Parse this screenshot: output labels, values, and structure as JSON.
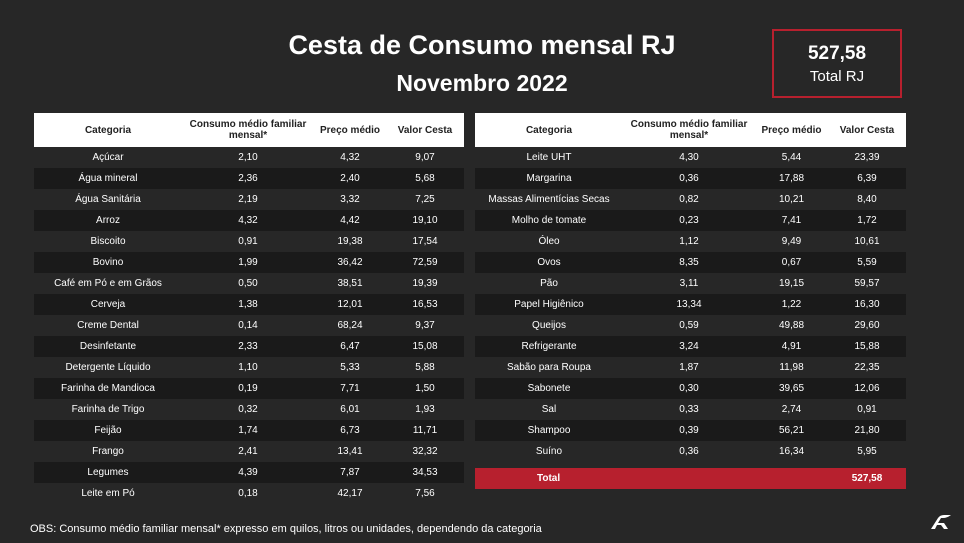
{
  "header": {
    "title": "Cesta de Consumo mensal RJ",
    "subtitle": "Novembro 2022"
  },
  "total_box": {
    "value": "527,58",
    "label": "Total RJ"
  },
  "columns": {
    "categoria": "Categoria",
    "consumo": "Consumo médio familiar mensal*",
    "preco": "Preço médio",
    "valor": "Valor Cesta"
  },
  "left_table": [
    {
      "categoria": "Açúcar",
      "consumo": "2,10",
      "preco": "4,32",
      "valor": "9,07"
    },
    {
      "categoria": "Água mineral",
      "consumo": "2,36",
      "preco": "2,40",
      "valor": "5,68"
    },
    {
      "categoria": "Água Sanitária",
      "consumo": "2,19",
      "preco": "3,32",
      "valor": "7,25"
    },
    {
      "categoria": "Arroz",
      "consumo": "4,32",
      "preco": "4,42",
      "valor": "19,10"
    },
    {
      "categoria": "Biscoito",
      "consumo": "0,91",
      "preco": "19,38",
      "valor": "17,54"
    },
    {
      "categoria": "Bovino",
      "consumo": "1,99",
      "preco": "36,42",
      "valor": "72,59"
    },
    {
      "categoria": "Café em Pó e em Grãos",
      "consumo": "0,50",
      "preco": "38,51",
      "valor": "19,39"
    },
    {
      "categoria": "Cerveja",
      "consumo": "1,38",
      "preco": "12,01",
      "valor": "16,53"
    },
    {
      "categoria": "Creme Dental",
      "consumo": "0,14",
      "preco": "68,24",
      "valor": "9,37"
    },
    {
      "categoria": "Desinfetante",
      "consumo": "2,33",
      "preco": "6,47",
      "valor": "15,08"
    },
    {
      "categoria": "Detergente Líquido",
      "consumo": "1,10",
      "preco": "5,33",
      "valor": "5,88"
    },
    {
      "categoria": "Farinha de Mandioca",
      "consumo": "0,19",
      "preco": "7,71",
      "valor": "1,50"
    },
    {
      "categoria": "Farinha de Trigo",
      "consumo": "0,32",
      "preco": "6,01",
      "valor": "1,93"
    },
    {
      "categoria": "Feijão",
      "consumo": "1,74",
      "preco": "6,73",
      "valor": "11,71"
    },
    {
      "categoria": "Frango",
      "consumo": "2,41",
      "preco": "13,41",
      "valor": "32,32"
    },
    {
      "categoria": "Legumes",
      "consumo": "4,39",
      "preco": "7,87",
      "valor": "34,53"
    },
    {
      "categoria": "Leite em Pó",
      "consumo": "0,18",
      "preco": "42,17",
      "valor": "7,56"
    }
  ],
  "right_table": [
    {
      "categoria": "Leite UHT",
      "consumo": "4,30",
      "preco": "5,44",
      "valor": "23,39"
    },
    {
      "categoria": "Margarina",
      "consumo": "0,36",
      "preco": "17,88",
      "valor": "6,39"
    },
    {
      "categoria": "Massas Alimentícias Secas",
      "consumo": "0,82",
      "preco": "10,21",
      "valor": "8,40"
    },
    {
      "categoria": "Molho de tomate",
      "consumo": "0,23",
      "preco": "7,41",
      "valor": "1,72"
    },
    {
      "categoria": "Óleo",
      "consumo": "1,12",
      "preco": "9,49",
      "valor": "10,61"
    },
    {
      "categoria": "Ovos",
      "consumo": "8,35",
      "preco": "0,67",
      "valor": "5,59"
    },
    {
      "categoria": "Pão",
      "consumo": "3,11",
      "preco": "19,15",
      "valor": "59,57"
    },
    {
      "categoria": "Papel Higiênico",
      "consumo": "13,34",
      "preco": "1,22",
      "valor": "16,30"
    },
    {
      "categoria": "Queijos",
      "consumo": "0,59",
      "preco": "49,88",
      "valor": "29,60"
    },
    {
      "categoria": "Refrigerante",
      "consumo": "3,24",
      "preco": "4,91",
      "valor": "15,88"
    },
    {
      "categoria": "Sabão para Roupa",
      "consumo": "1,87",
      "preco": "11,98",
      "valor": "22,35"
    },
    {
      "categoria": "Sabonete",
      "consumo": "0,30",
      "preco": "39,65",
      "valor": "12,06"
    },
    {
      "categoria": "Sal",
      "consumo": "0,33",
      "preco": "2,74",
      "valor": "0,91"
    },
    {
      "categoria": "Shampoo",
      "consumo": "0,39",
      "preco": "56,21",
      "valor": "21,80"
    },
    {
      "categoria": "Suíno",
      "consumo": "0,36",
      "preco": "16,34",
      "valor": "5,95"
    }
  ],
  "total_row": {
    "label": "Total",
    "value": "527,58"
  },
  "footnote": "OBS: Consumo médio familiar mensal* expresso em quilos, litros ou unidades, dependendo da categoria",
  "colors": {
    "background": "#272727",
    "row_alt": "#1a1a1a",
    "accent_red": "#b7202e",
    "header_bg": "#ffffff"
  },
  "logo_icon": "brand-logo-icon"
}
